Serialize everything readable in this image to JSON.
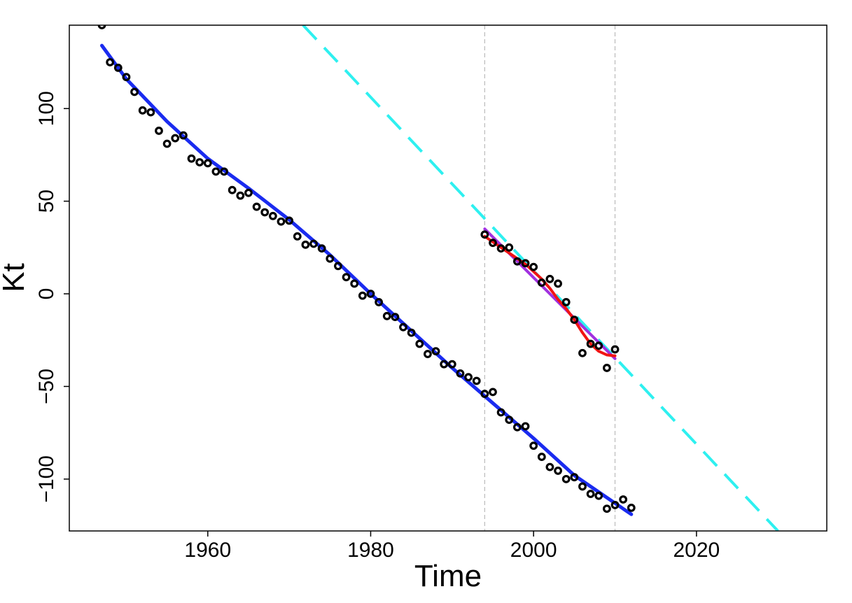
{
  "chart_data": {
    "type": "line",
    "xlabel": "Time",
    "ylabel": "Kt",
    "xlim": [
      1943,
      2036
    ],
    "ylim": [
      -128,
      145
    ],
    "x_ticks": [
      1960,
      1980,
      2000,
      2020
    ],
    "y_ticks": [
      100,
      50,
      0,
      -50,
      -100
    ],
    "x_tick_labels": [
      "1960",
      "1980",
      "2000",
      "2020"
    ],
    "y_tick_labels": [
      "100",
      "50",
      "0",
      "−50",
      "−100"
    ],
    "vlines": [
      1994,
      2010
    ],
    "grid": false,
    "legend": "none",
    "colors": {
      "observed": "#000000",
      "fit_full": "#1a2bf0",
      "projection": "#2ef0f0",
      "fit_smooth_recent": "#f01414",
      "fit_linear_recent": "#a030e0",
      "vline": "#bbbbbb"
    },
    "series": [
      {
        "kind": "points",
        "color_key": "observed",
        "x": [
          1947,
          1948,
          1949,
          1950,
          1951,
          1952,
          1953,
          1954,
          1955,
          1956,
          1957,
          1958,
          1959,
          1960,
          1961,
          1962,
          1963,
          1964,
          1965,
          1966,
          1967,
          1968,
          1969,
          1970,
          1971,
          1972,
          1973,
          1974,
          1975,
          1976,
          1977,
          1978,
          1979,
          1980,
          1981,
          1982,
          1983,
          1984,
          1985,
          1986,
          1987,
          1988,
          1989,
          1990,
          1991,
          1992,
          1993,
          1994,
          1995,
          1996,
          1997,
          1998,
          1999,
          2000,
          2001,
          2002,
          2003,
          2004,
          2005,
          2006,
          2007,
          2008,
          2009,
          2010,
          2011,
          2012
        ],
        "y": [
          145,
          125,
          122,
          117,
          109,
          99,
          98,
          88,
          81,
          84,
          85.5,
          73,
          71,
          70.5,
          66,
          66,
          56,
          53,
          54.5,
          47,
          44,
          42,
          39,
          39.5,
          31,
          26.5,
          27,
          24.5,
          19,
          15,
          9,
          5.5,
          -1,
          0,
          -4.5,
          -12,
          -12.5,
          -18,
          -21,
          -27,
          -32.5,
          -31,
          -38,
          -38,
          -43,
          -45,
          -47,
          -54,
          -53,
          -64,
          -68,
          -72,
          -71.5,
          -82,
          -88,
          -93.5,
          -95.5,
          -100,
          -99,
          -104,
          -108,
          -109,
          -116,
          -114,
          -111,
          -115.5
        ]
      },
      {
        "kind": "points",
        "color_key": "observed",
        "x": [
          1994,
          1995,
          1996,
          1997,
          1998,
          1999,
          2000,
          2001,
          2002,
          2003,
          2004,
          2005,
          2006,
          2007,
          2008,
          2009,
          2010
        ],
        "y": [
          32,
          27.5,
          24.5,
          25,
          17.5,
          16.5,
          14.5,
          6,
          8,
          5.5,
          -4.5,
          -14,
          -32,
          -27,
          -28,
          -40,
          -30
        ]
      },
      {
        "kind": "line",
        "color_key": "fit_full",
        "width": 5,
        "x": [
          1947,
          1950,
          1955,
          1960,
          1965,
          1970,
          1975,
          1980,
          1985,
          1990,
          1995,
          2000,
          2005,
          2010,
          2012
        ],
        "y": [
          134,
          116,
          93,
          73,
          57,
          40,
          21,
          0,
          -20,
          -40,
          -59,
          -78,
          -98,
          -113,
          -119
        ]
      },
      {
        "kind": "line",
        "color_key": "projection",
        "width": 4,
        "dash": "28,16",
        "x": [
          1971.7,
          2030
        ],
        "y": [
          145,
          -128
        ]
      },
      {
        "kind": "line",
        "color_key": "fit_linear_recent",
        "width": 4,
        "x": [
          1994,
          2010
        ],
        "y": [
          35,
          -35
        ]
      },
      {
        "kind": "line",
        "color_key": "fit_smooth_recent",
        "width": 4,
        "x": [
          1994,
          1995,
          1996,
          1997,
          1998,
          1999,
          2000,
          2001,
          2002,
          2003,
          2004,
          2005,
          2006,
          2007,
          2008,
          2009,
          2010
        ],
        "y": [
          31,
          28,
          25,
          22,
          19,
          16,
          12,
          8,
          3,
          -3,
          -8,
          -14,
          -21,
          -27,
          -31,
          -33,
          -33.5
        ]
      }
    ]
  }
}
